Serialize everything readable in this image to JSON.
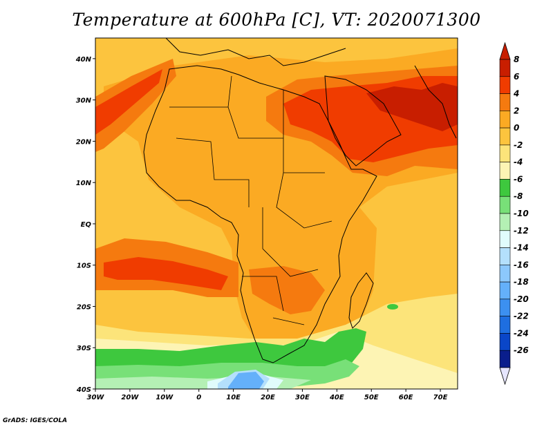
{
  "title": "Temperature at 600hPa [C], VT: 2020071300",
  "credit": "GrADS: IGES/COLA",
  "axes": {
    "lon_labels": [
      "30W",
      "20W",
      "10W",
      "0",
      "10E",
      "20E",
      "30E",
      "40E",
      "50E",
      "60E",
      "70E"
    ],
    "lat_labels": [
      "40N",
      "30N",
      "20N",
      "10N",
      "EQ",
      "10S",
      "20S",
      "30S",
      "40S"
    ],
    "lon_range": [
      -30,
      75
    ],
    "lat_range": [
      -40,
      45
    ]
  },
  "colorbar": {
    "labels": [
      "8",
      "6",
      "4",
      "2",
      "0",
      "-2",
      "-4",
      "-6",
      "-8",
      "-10",
      "-12",
      "-14",
      "-16",
      "-18",
      "-20",
      "-22",
      "-24",
      "-26"
    ],
    "colors": [
      "#c81e00",
      "#f03c00",
      "#f57a0f",
      "#fbaa23",
      "#fcc43e",
      "#fce47a",
      "#fdf4b4",
      "#3ec83e",
      "#78e078",
      "#b4f0b4",
      "#e0fcfc",
      "#b4e0fc",
      "#8cc8fc",
      "#64b0fa",
      "#3c90f0",
      "#1e6ee0",
      "#0a46c8",
      "#0a1e8c"
    ],
    "triangle_top": "#c81e00",
    "triangle_bottom": "#e6e6ff"
  },
  "fill_colors": {
    "ocean_base": "#fcc43e",
    "land_warm": "#fbaa23",
    "hot": "#f57a0f",
    "very_hot": "#f03c00",
    "extreme": "#c81e00",
    "cool": "#fce47a",
    "cooler": "#fdf4b4",
    "green": "#3ec83e",
    "light_green": "#78e078",
    "pale_green": "#b4f0b4",
    "cyan": "#e0fcfc",
    "light_blue": "#b4e0fc",
    "blue": "#64b0fa"
  }
}
